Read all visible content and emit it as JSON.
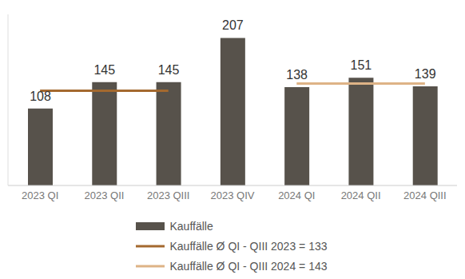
{
  "chart_data": {
    "type": "bar",
    "categories": [
      "2023 QI",
      "2023 QII",
      "2023 QIII",
      "2023 QIV",
      "2024 QI",
      "2024 QII",
      "2024 QIII"
    ],
    "series": [
      {
        "name": "Kauffälle",
        "type": "bar",
        "color": "#57524b",
        "values": [
          108,
          145,
          145,
          207,
          138,
          151,
          139
        ]
      },
      {
        "name": "Kauffälle Ø QI - QIII 2023 = 133",
        "type": "line",
        "color": "#a4692f",
        "values": [
          133,
          133,
          133,
          null,
          null,
          null,
          null
        ]
      },
      {
        "name": "Kauffälle Ø QI - QIII 2024 = 143",
        "type": "line",
        "color": "#deb386",
        "values": [
          null,
          null,
          null,
          null,
          143,
          143,
          143
        ]
      }
    ],
    "ylim": [
      0,
      240
    ],
    "tick_labels": "x",
    "data_labels": true,
    "legend": "bottom",
    "grid": false
  }
}
